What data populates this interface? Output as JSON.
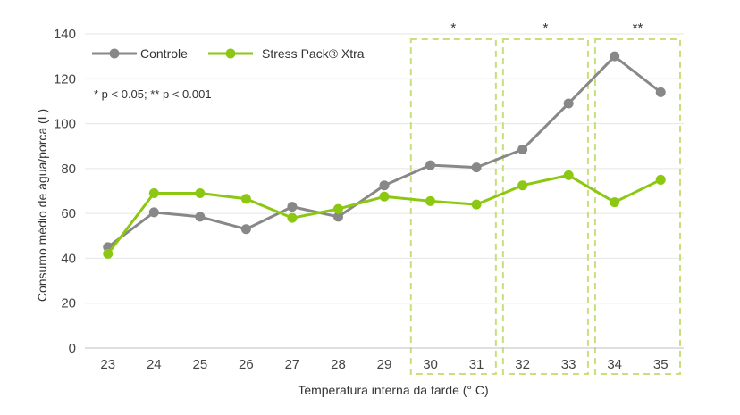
{
  "chart_data": {
    "type": "line",
    "x": [
      23,
      24,
      25,
      26,
      27,
      28,
      29,
      30,
      31,
      32,
      33,
      34,
      35
    ],
    "categories": [
      "23",
      "24",
      "25",
      "26",
      "27",
      "28",
      "29",
      "30",
      "31",
      "32",
      "33",
      "34",
      "35"
    ],
    "series": [
      {
        "name": "Controle",
        "color": "#888888",
        "values": [
          45,
          60.5,
          58.5,
          53,
          63,
          58.5,
          72.5,
          81.5,
          80.5,
          88.5,
          109,
          130,
          114
        ]
      },
      {
        "name": "Stress Pack® Xtra",
        "color": "#8cc812",
        "values": [
          42,
          69,
          69,
          66.5,
          58,
          62,
          67.5,
          65.5,
          64,
          72.5,
          77,
          65,
          75
        ]
      }
    ],
    "xlabel": "Temperatura interna da tarde (° C)",
    "ylabel": "Consumo médio de água/porca (L)",
    "ylim": [
      0,
      140
    ],
    "yticks": [
      0,
      20,
      40,
      60,
      80,
      100,
      120,
      140
    ],
    "grid": true,
    "legend_position": "top-left",
    "note": "* p < 0.05; ** p < 0.001",
    "significance_regions": [
      {
        "x_start": 30,
        "x_end": 31,
        "label": "*"
      },
      {
        "x_start": 32,
        "x_end": 33,
        "label": "*"
      },
      {
        "x_start": 34,
        "x_end": 35,
        "label": "**"
      }
    ]
  }
}
